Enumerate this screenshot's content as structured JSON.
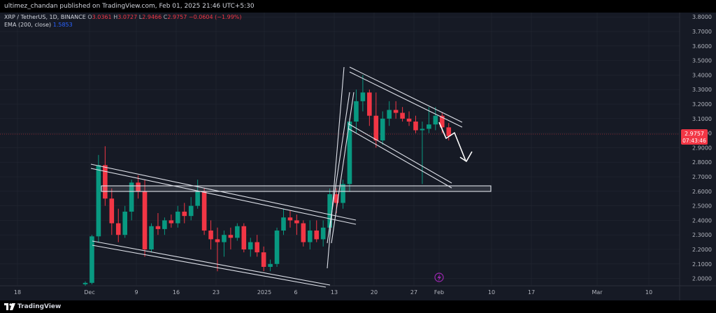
{
  "publisher": {
    "text": "ultimez_chandan published on TradingView.com, Feb 01, 2025 21:46 UTC+5:30"
  },
  "legend": {
    "symbol": "XRP / TetherUS, 1D, BINANCE",
    "open_key": "O",
    "open": "3.0361",
    "high_key": "H",
    "high": "3.0727",
    "low_key": "L",
    "low": "2.9466",
    "close_key": "C",
    "close": "2.9757",
    "change": "−0.0604 (−1.99%)",
    "ema_label": "EMA (200, close)",
    "ema_value": "1.5853"
  },
  "price_axis": {
    "ticks": [
      "3.8000",
      "3.7000",
      "3.6000",
      "3.5000",
      "3.4000",
      "3.3000",
      "3.2000",
      "3.1000",
      "3.0000",
      "2.9000",
      "2.8000",
      "2.7000",
      "2.6000",
      "2.5000",
      "2.4000",
      "2.3000",
      "2.2000",
      "2.1000",
      "2.0000"
    ]
  },
  "price_tag": {
    "price": "2.9757",
    "countdown": "07:43:46",
    "color": "#f23645"
  },
  "time_axis": {
    "ticks": [
      "18",
      "Dec",
      "9",
      "16",
      "23",
      "2025",
      "6",
      "13",
      "20",
      "27",
      "Feb",
      "10",
      "17",
      "Mar",
      "10"
    ]
  },
  "colors": {
    "up": "#089981",
    "down": "#f23645",
    "background": "#161a25",
    "drawing": "#e0e3eb",
    "arrow": "#ffffff",
    "flash": "#9c27b0"
  },
  "footer": {
    "brand": "TradingView"
  },
  "chart_data": {
    "type": "candlestick",
    "symbol": "XRP / TetherUS",
    "interval": "1D",
    "exchange": "BINANCE",
    "ylim": [
      1.95,
      3.83
    ],
    "candles": [
      {
        "o": 1.96,
        "h": 1.98,
        "l": 1.95,
        "c": 1.97
      },
      {
        "o": 1.97,
        "h": 2.3,
        "l": 1.96,
        "c": 2.29
      },
      {
        "o": 2.29,
        "h": 2.85,
        "l": 2.25,
        "c": 2.78
      },
      {
        "o": 2.78,
        "h": 2.91,
        "l": 2.5,
        "c": 2.55
      },
      {
        "o": 2.55,
        "h": 2.62,
        "l": 2.3,
        "c": 2.38
      },
      {
        "o": 2.38,
        "h": 2.48,
        "l": 2.25,
        "c": 2.3
      },
      {
        "o": 2.3,
        "h": 2.5,
        "l": 2.28,
        "c": 2.46
      },
      {
        "o": 2.46,
        "h": 2.68,
        "l": 2.4,
        "c": 2.66
      },
      {
        "o": 2.66,
        "h": 2.71,
        "l": 2.55,
        "c": 2.6
      },
      {
        "o": 2.6,
        "h": 2.68,
        "l": 2.15,
        "c": 2.2
      },
      {
        "o": 2.2,
        "h": 2.38,
        "l": 2.18,
        "c": 2.36
      },
      {
        "o": 2.36,
        "h": 2.45,
        "l": 2.3,
        "c": 2.34
      },
      {
        "o": 2.34,
        "h": 2.42,
        "l": 2.3,
        "c": 2.4
      },
      {
        "o": 2.4,
        "h": 2.44,
        "l": 2.35,
        "c": 2.38
      },
      {
        "o": 2.38,
        "h": 2.5,
        "l": 2.35,
        "c": 2.46
      },
      {
        "o": 2.46,
        "h": 2.52,
        "l": 2.38,
        "c": 2.43
      },
      {
        "o": 2.43,
        "h": 2.56,
        "l": 2.4,
        "c": 2.5
      },
      {
        "o": 2.5,
        "h": 2.68,
        "l": 2.48,
        "c": 2.6
      },
      {
        "o": 2.6,
        "h": 2.62,
        "l": 2.3,
        "c": 2.33
      },
      {
        "o": 2.33,
        "h": 2.4,
        "l": 2.2,
        "c": 2.27
      },
      {
        "o": 2.27,
        "h": 2.35,
        "l": 2.05,
        "c": 2.25
      },
      {
        "o": 2.25,
        "h": 2.33,
        "l": 2.15,
        "c": 2.3
      },
      {
        "o": 2.3,
        "h": 2.35,
        "l": 2.2,
        "c": 2.28
      },
      {
        "o": 2.28,
        "h": 2.38,
        "l": 2.26,
        "c": 2.36
      },
      {
        "o": 2.36,
        "h": 2.38,
        "l": 2.18,
        "c": 2.2
      },
      {
        "o": 2.2,
        "h": 2.28,
        "l": 2.15,
        "c": 2.25
      },
      {
        "o": 2.25,
        "h": 2.3,
        "l": 2.15,
        "c": 2.18
      },
      {
        "o": 2.18,
        "h": 2.22,
        "l": 2.05,
        "c": 2.08
      },
      {
        "o": 2.08,
        "h": 2.13,
        "l": 2.05,
        "c": 2.1
      },
      {
        "o": 2.1,
        "h": 2.35,
        "l": 2.08,
        "c": 2.33
      },
      {
        "o": 2.33,
        "h": 2.48,
        "l": 2.3,
        "c": 2.42
      },
      {
        "o": 2.42,
        "h": 2.47,
        "l": 2.35,
        "c": 2.4
      },
      {
        "o": 2.4,
        "h": 2.44,
        "l": 2.3,
        "c": 2.38
      },
      {
        "o": 2.38,
        "h": 2.4,
        "l": 2.22,
        "c": 2.25
      },
      {
        "o": 2.25,
        "h": 2.4,
        "l": 2.2,
        "c": 2.33
      },
      {
        "o": 2.33,
        "h": 2.4,
        "l": 2.25,
        "c": 2.27
      },
      {
        "o": 2.27,
        "h": 2.4,
        "l": 2.22,
        "c": 2.35
      },
      {
        "o": 2.35,
        "h": 2.62,
        "l": 2.3,
        "c": 2.58
      },
      {
        "o": 2.58,
        "h": 2.62,
        "l": 2.45,
        "c": 2.52
      },
      {
        "o": 2.52,
        "h": 2.68,
        "l": 2.48,
        "c": 2.65
      },
      {
        "o": 2.65,
        "h": 3.1,
        "l": 2.6,
        "c": 3.08
      },
      {
        "o": 3.08,
        "h": 3.3,
        "l": 3.0,
        "c": 3.22
      },
      {
        "o": 3.22,
        "h": 3.4,
        "l": 3.15,
        "c": 3.28
      },
      {
        "o": 3.28,
        "h": 3.3,
        "l": 3.05,
        "c": 3.12
      },
      {
        "o": 3.12,
        "h": 3.28,
        "l": 2.9,
        "c": 2.95
      },
      {
        "o": 2.95,
        "h": 3.15,
        "l": 2.92,
        "c": 3.1
      },
      {
        "o": 3.1,
        "h": 3.22,
        "l": 3.05,
        "c": 3.16
      },
      {
        "o": 3.16,
        "h": 3.22,
        "l": 3.1,
        "c": 3.14
      },
      {
        "o": 3.14,
        "h": 3.18,
        "l": 3.08,
        "c": 3.1
      },
      {
        "o": 3.1,
        "h": 3.15,
        "l": 3.05,
        "c": 3.08
      },
      {
        "o": 3.08,
        "h": 3.12,
        "l": 3.0,
        "c": 3.02
      },
      {
        "o": 3.02,
        "h": 3.08,
        "l": 2.65,
        "c": 3.03
      },
      {
        "o": 3.03,
        "h": 3.18,
        "l": 3.0,
        "c": 3.06
      },
      {
        "o": 3.06,
        "h": 3.18,
        "l": 3.02,
        "c": 3.12
      },
      {
        "o": 3.12,
        "h": 3.14,
        "l": 3.0,
        "c": 3.04
      },
      {
        "o": 3.04,
        "h": 3.07,
        "l": 2.95,
        "c": 2.98
      }
    ],
    "annotations": [
      {
        "type": "horizontal-zone",
        "price_low": 2.59,
        "price_high": 2.63
      },
      {
        "type": "descending-channel",
        "name": "first channel"
      },
      {
        "type": "descending-channel",
        "name": "second channel"
      },
      {
        "type": "projection-arrow",
        "direction": "down"
      }
    ]
  }
}
